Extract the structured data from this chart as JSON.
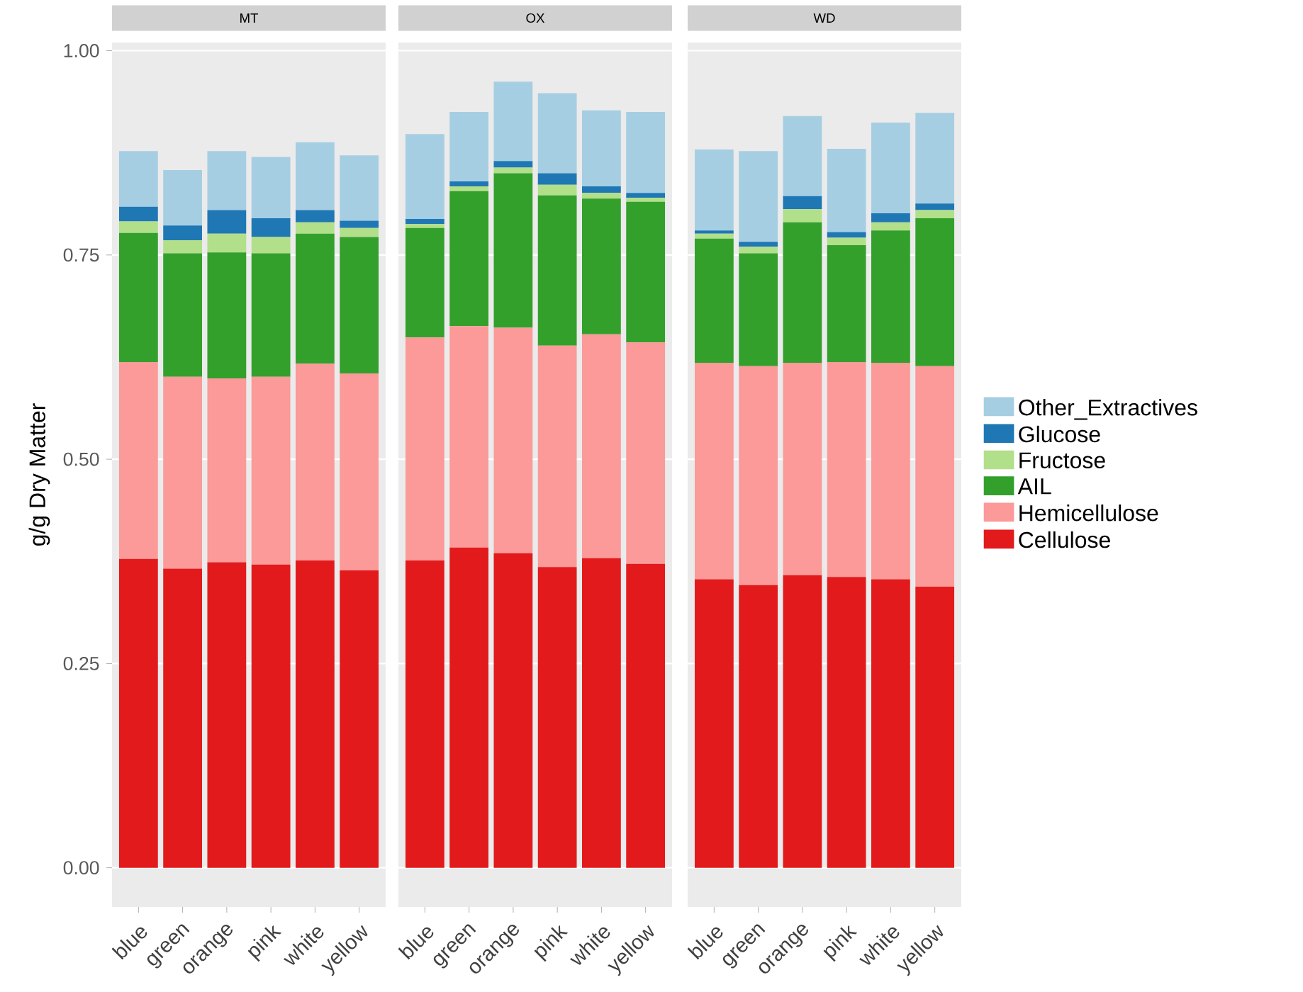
{
  "chart_data": [
    {
      "type": "bar",
      "stacked": true,
      "title": "MT",
      "ylabel": "g/g Dry Matter",
      "categories": [
        "blue",
        "green",
        "orange",
        "pink",
        "white",
        "yellow"
      ],
      "ylim": [
        -0.048,
        1.01
      ],
      "yticks": [
        {
          "value": 0,
          "label": "0.00"
        },
        {
          "value": 0.25,
          "label": "0.25"
        },
        {
          "value": 0.5,
          "label": "0.50"
        },
        {
          "value": 0.75,
          "label": "0.75"
        },
        {
          "value": 1,
          "label": "1.00"
        }
      ],
      "grid": "y",
      "series": [
        {
          "color": "#e31a1c",
          "values": [
            0.378,
            0.366,
            0.374,
            0.371,
            0.376,
            0.364
          ]
        },
        {
          "color": "#fb9a99",
          "values": [
            0.241,
            0.235,
            0.225,
            0.23,
            0.241,
            0.241
          ]
        },
        {
          "color": "#33a02c",
          "values": [
            0.158,
            0.151,
            0.154,
            0.151,
            0.159,
            0.167
          ]
        },
        {
          "color": "#b2df8a",
          "values": [
            0.014,
            0.016,
            0.023,
            0.02,
            0.014,
            0.011
          ]
        },
        {
          "color": "#1f78b4",
          "values": [
            0.018,
            0.018,
            0.029,
            0.023,
            0.015,
            0.009
          ]
        },
        {
          "color": "#a6cee3",
          "values": [
            0.068,
            0.068,
            0.072,
            0.075,
            0.083,
            0.08
          ]
        }
      ]
    },
    {
      "type": "bar",
      "stacked": true,
      "title": "OX",
      "categories": [
        "blue",
        "green",
        "orange",
        "pink",
        "white",
        "yellow"
      ],
      "ylim": [
        -0.048,
        1.01
      ],
      "yticks": [
        {
          "value": 0,
          "label": null
        },
        {
          "value": 0.25,
          "label": null
        },
        {
          "value": 0.5,
          "label": null
        },
        {
          "value": 0.75,
          "label": null
        },
        {
          "value": 1,
          "label": null
        }
      ],
      "tick_labels": "x",
      "grid": "y",
      "series": [
        {
          "color": "#e31a1c",
          "values": [
            0.376,
            0.392,
            0.385,
            0.368,
            0.379,
            0.372
          ]
        },
        {
          "color": "#fb9a99",
          "values": [
            0.273,
            0.271,
            0.276,
            0.271,
            0.274,
            0.271
          ]
        },
        {
          "color": "#33a02c",
          "values": [
            0.134,
            0.165,
            0.189,
            0.184,
            0.166,
            0.172
          ]
        },
        {
          "color": "#b2df8a",
          "values": [
            0.005,
            0.006,
            0.007,
            0.013,
            0.007,
            0.005
          ]
        },
        {
          "color": "#1f78b4",
          "values": [
            0.006,
            0.006,
            0.008,
            0.014,
            0.008,
            0.006
          ]
        },
        {
          "color": "#a6cee3",
          "values": [
            0.104,
            0.085,
            0.097,
            0.098,
            0.093,
            0.099
          ]
        }
      ]
    },
    {
      "type": "bar",
      "stacked": true,
      "title": "WD",
      "categories": [
        "blue",
        "green",
        "orange",
        "pink",
        "white",
        "yellow"
      ],
      "ylim": [
        -0.048,
        1.01
      ],
      "yticks": [
        {
          "value": 0,
          "label": null
        },
        {
          "value": 0.25,
          "label": null
        },
        {
          "value": 0.5,
          "label": null
        },
        {
          "value": 0.75,
          "label": null
        },
        {
          "value": 1,
          "label": null
        }
      ],
      "tick_labels": "x",
      "grid": "y",
      "legend": "right",
      "series": [
        {
          "name": "Cellulose",
          "color": "#e31a1c",
          "values": [
            0.353,
            0.346,
            0.358,
            0.356,
            0.353,
            0.344
          ]
        },
        {
          "name": "Hemicellulose",
          "color": "#fb9a99",
          "values": [
            0.265,
            0.268,
            0.26,
            0.263,
            0.265,
            0.27
          ]
        },
        {
          "name": "AIL",
          "color": "#33a02c",
          "values": [
            0.152,
            0.138,
            0.172,
            0.143,
            0.162,
            0.181
          ]
        },
        {
          "name": "Fructose",
          "color": "#b2df8a",
          "values": [
            0.006,
            0.008,
            0.016,
            0.009,
            0.01,
            0.01
          ]
        },
        {
          "name": "Glucose",
          "color": "#1f78b4",
          "values": [
            0.004,
            0.006,
            0.016,
            0.007,
            0.011,
            0.008
          ]
        },
        {
          "name": "Other_Extractives",
          "color": "#a6cee3",
          "values": [
            0.099,
            0.111,
            0.098,
            0.102,
            0.111,
            0.111
          ]
        }
      ]
    }
  ]
}
